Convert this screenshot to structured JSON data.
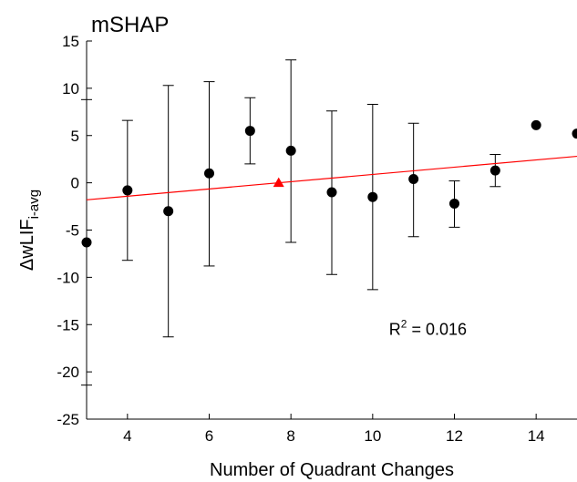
{
  "chart_data": {
    "type": "scatter",
    "title": "mSHAP",
    "xlabel": "Number of Quadrant Changes",
    "ylabel": "ΔwLIF",
    "ylabel_subscript": "i-avg",
    "xlim": [
      3,
      15
    ],
    "ylim": [
      -25,
      15
    ],
    "xticks": [
      4,
      6,
      8,
      10,
      12,
      14
    ],
    "yticks": [
      -25,
      -20,
      -15,
      -10,
      -5,
      0,
      5,
      10,
      15
    ],
    "grid": false,
    "points": [
      {
        "x": 3,
        "y": -6.3,
        "err_low": -21.4,
        "err_high": 8.8
      },
      {
        "x": 4,
        "y": -0.8,
        "err_low": -8.2,
        "err_high": 6.6
      },
      {
        "x": 5,
        "y": -3.0,
        "err_low": -16.3,
        "err_high": 10.3
      },
      {
        "x": 6,
        "y": 1.0,
        "err_low": -8.8,
        "err_high": 10.7
      },
      {
        "x": 7,
        "y": 5.5,
        "err_low": 2.0,
        "err_high": 9.0
      },
      {
        "x": 8,
        "y": 3.4,
        "err_low": -6.3,
        "err_high": 13.0
      },
      {
        "x": 9,
        "y": -1.0,
        "err_low": -9.7,
        "err_high": 7.6
      },
      {
        "x": 10,
        "y": -1.5,
        "err_low": -11.3,
        "err_high": 8.3
      },
      {
        "x": 11,
        "y": 0.4,
        "err_low": -5.7,
        "err_high": 6.3
      },
      {
        "x": 12,
        "y": -2.2,
        "err_low": -4.7,
        "err_high": 0.2
      },
      {
        "x": 13,
        "y": 1.3,
        "err_low": -0.4,
        "err_high": 3.0
      },
      {
        "x": 14,
        "y": 6.1,
        "err_low": null,
        "err_high": null
      },
      {
        "x": 15,
        "y": 5.2,
        "err_low": null,
        "err_high": null
      }
    ],
    "mean_marker": {
      "x": 7.7,
      "y": 0.0,
      "color": "#ff0000",
      "shape": "triangle"
    },
    "fit_line": {
      "x": [
        3,
        15
      ],
      "y": [
        -1.8,
        2.8
      ],
      "color": "#ff0000"
    },
    "annotation": {
      "text": "R",
      "sup": "2",
      "rest": " = 0.016",
      "x": 10.4,
      "y": -15.5
    }
  }
}
